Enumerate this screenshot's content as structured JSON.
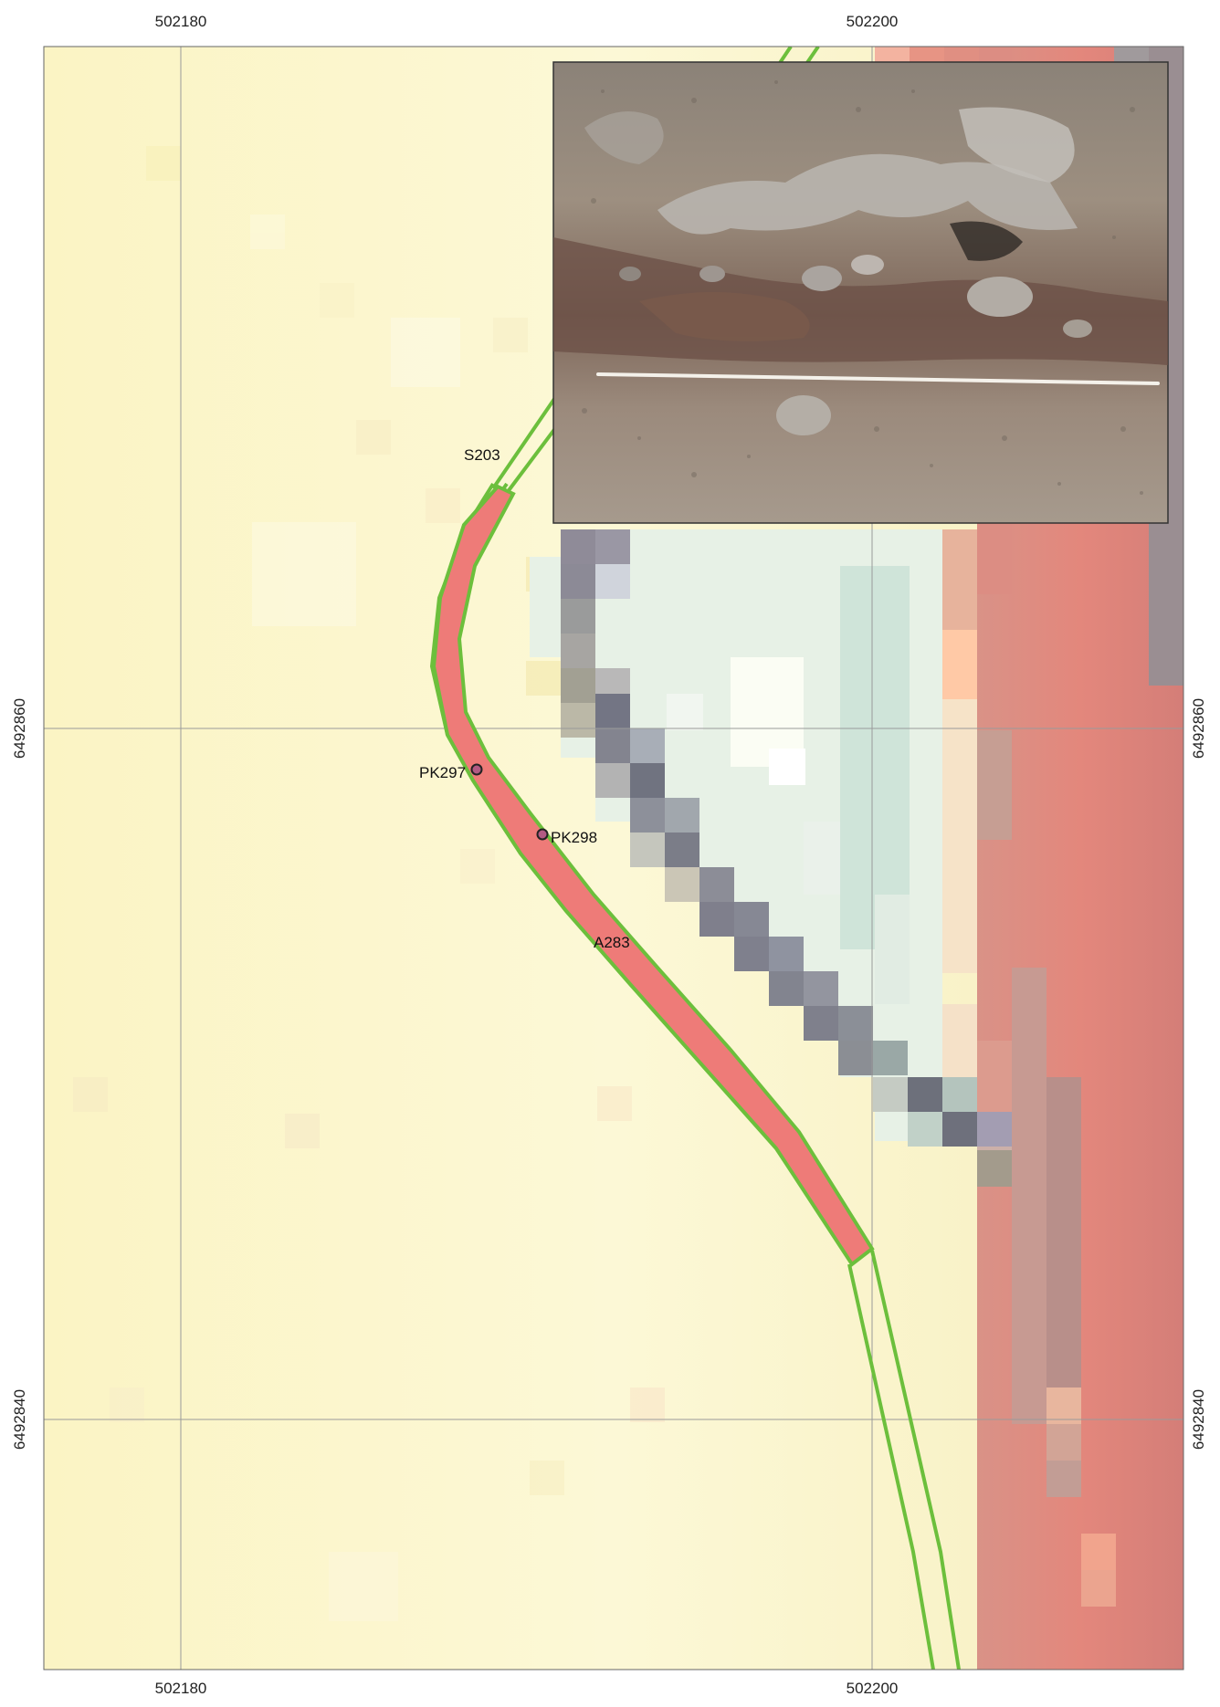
{
  "coordinates": {
    "x_top_left": "502180",
    "x_top_right": "502200",
    "x_bottom_left": "502180",
    "x_bottom_right": "502200",
    "y_left_upper": "6492860",
    "y_left_lower": "6492840",
    "y_right_upper": "6492860",
    "y_right_lower": "6492840"
  },
  "features": {
    "trench_label": "S203",
    "feature_label": "A283",
    "point_1": "PK297",
    "point_2": "PK298"
  },
  "colors": {
    "trench_outline": "#6cbf3c",
    "feature_fill": "#ee7b78",
    "point_fill": "#b25a83",
    "background": "#faf6c8",
    "grid_line": "#9a9a9a"
  },
  "inset_photo": {
    "description_icon": "excavation-photo-icon"
  }
}
